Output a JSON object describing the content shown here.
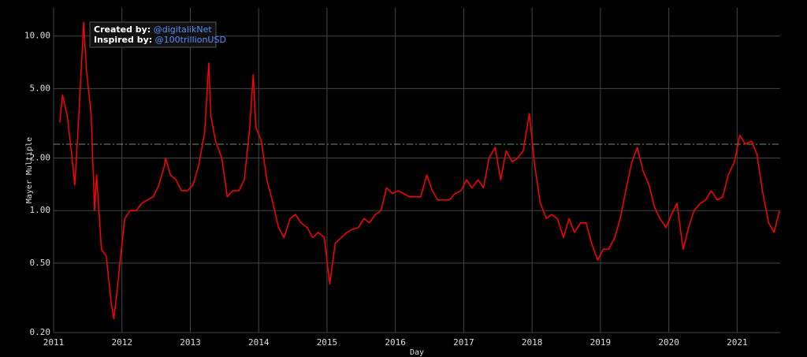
{
  "chart_data": {
    "type": "line",
    "xlabel": "Day",
    "ylabel": "Mayer Multiple",
    "log_y": true,
    "grid": true,
    "background": "#000000",
    "xlim": [
      2011,
      2021.63
    ],
    "xticks": [
      2011,
      2012,
      2013,
      2014,
      2015,
      2016,
      2017,
      2018,
      2019,
      2020,
      2021
    ],
    "ylim": [
      0.2,
      14.5
    ],
    "yticks": [
      {
        "value": 0.2,
        "label": "0.20"
      },
      {
        "value": 0.5,
        "label": "0.50"
      },
      {
        "value": 1,
        "label": "1.00"
      },
      {
        "value": 2,
        "label": "2.00"
      },
      {
        "value": 5,
        "label": "5.00"
      },
      {
        "value": 10,
        "label": "10.00"
      }
    ],
    "ref_line": {
      "value": 2.4,
      "color": "#6a9a6a"
    },
    "annotation": {
      "created_label": "Created by:",
      "created_value": "@digitalikNet",
      "inspired_label": "Inspired by:",
      "inspired_value": "@100trillionUSD"
    },
    "x": [
      2011.09,
      2011.13,
      2011.2,
      2011.27,
      2011.31,
      2011.36,
      2011.4,
      2011.44,
      2011.48,
      2011.55,
      2011.6,
      2011.63,
      2011.7,
      2011.77,
      2011.84,
      2011.88,
      2011.93,
      2011.97,
      2012.04,
      2012.12,
      2012.21,
      2012.29,
      2012.37,
      2012.46,
      2012.54,
      2012.62,
      2012.64,
      2012.71,
      2012.79,
      2012.87,
      2012.96,
      2013.04,
      2013.12,
      2013.21,
      2013.27,
      2013.3,
      2013.37,
      2013.46,
      2013.54,
      2013.62,
      2013.71,
      2013.79,
      2013.87,
      2013.92,
      2013.96,
      2014.04,
      2014.12,
      2014.21,
      2014.29,
      2014.37,
      2014.46,
      2014.54,
      2014.62,
      2014.71,
      2014.79,
      2014.87,
      2014.96,
      2015.04,
      2015.12,
      2015.21,
      2015.29,
      2015.37,
      2015.46,
      2015.54,
      2015.62,
      2015.71,
      2015.79,
      2015.87,
      2015.96,
      2016.04,
      2016.12,
      2016.21,
      2016.29,
      2016.37,
      2016.46,
      2016.54,
      2016.62,
      2016.71,
      2016.79,
      2016.87,
      2016.96,
      2017.04,
      2017.12,
      2017.21,
      2017.29,
      2017.37,
      2017.46,
      2017.54,
      2017.62,
      2017.71,
      2017.79,
      2017.87,
      2017.96,
      2018.04,
      2018.12,
      2018.21,
      2018.29,
      2018.37,
      2018.46,
      2018.54,
      2018.62,
      2018.71,
      2018.79,
      2018.87,
      2018.96,
      2019.04,
      2019.12,
      2019.21,
      2019.29,
      2019.37,
      2019.46,
      2019.54,
      2019.62,
      2019.71,
      2019.79,
      2019.87,
      2019.96,
      2020.04,
      2020.12,
      2020.21,
      2020.29,
      2020.37,
      2020.46,
      2020.54,
      2020.62,
      2020.71,
      2020.79,
      2020.87,
      2020.96,
      2021.04,
      2021.12,
      2021.21,
      2021.29,
      2021.37,
      2021.46,
      2021.54,
      2021.62
    ],
    "series": [
      {
        "name": "Mayer Multiple",
        "color": "#ff0000",
        "values": [
          3.2,
          4.6,
          3.5,
          2.0,
          1.4,
          3.0,
          6.0,
          12.0,
          6.5,
          3.5,
          1.0,
          1.6,
          0.6,
          0.55,
          0.3,
          0.24,
          0.35,
          0.5,
          0.9,
          1.0,
          1.0,
          1.1,
          1.15,
          1.2,
          1.4,
          1.8,
          2.0,
          1.6,
          1.5,
          1.3,
          1.3,
          1.4,
          1.8,
          2.8,
          7.0,
          3.5,
          2.5,
          2.0,
          1.2,
          1.3,
          1.3,
          1.5,
          3.0,
          6.0,
          3.0,
          2.5,
          1.5,
          1.1,
          0.8,
          0.7,
          0.9,
          0.95,
          0.85,
          0.8,
          0.7,
          0.75,
          0.7,
          0.38,
          0.65,
          0.7,
          0.75,
          0.78,
          0.8,
          0.9,
          0.85,
          0.95,
          1.0,
          1.35,
          1.25,
          1.3,
          1.25,
          1.2,
          1.2,
          1.2,
          1.6,
          1.3,
          1.15,
          1.15,
          1.15,
          1.25,
          1.3,
          1.5,
          1.35,
          1.5,
          1.35,
          2.0,
          2.3,
          1.5,
          2.2,
          1.9,
          2.0,
          2.2,
          3.6,
          1.8,
          1.1,
          0.9,
          0.95,
          0.9,
          0.7,
          0.9,
          0.75,
          0.85,
          0.85,
          0.65,
          0.52,
          0.6,
          0.6,
          0.7,
          0.9,
          1.3,
          1.9,
          2.3,
          1.7,
          1.4,
          1.05,
          0.9,
          0.8,
          0.95,
          1.1,
          0.6,
          0.8,
          1.0,
          1.1,
          1.15,
          1.3,
          1.15,
          1.2,
          1.6,
          1.9,
          2.7,
          2.4,
          2.5,
          2.1,
          1.3,
          0.85,
          0.75,
          1.0
        ]
      }
    ]
  }
}
